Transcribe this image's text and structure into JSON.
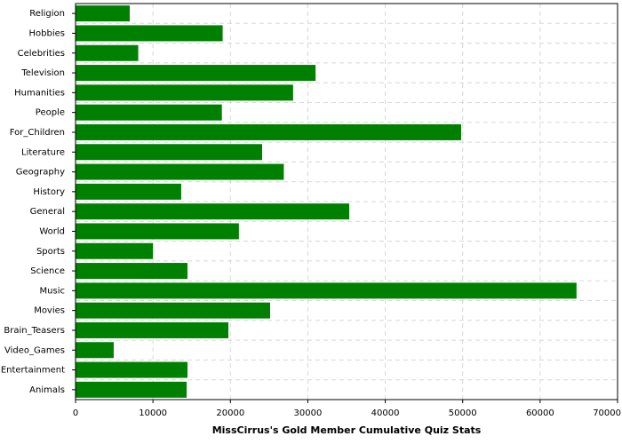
{
  "chart_data": {
    "type": "hbar",
    "title": "MissCirrus's Gold Member Cumulative Quiz Stats",
    "categories": [
      "Religion",
      "Hobbies",
      "Celebrities",
      "Television",
      "Humanities",
      "People",
      "For_Children",
      "Literature",
      "Geography",
      "History",
      "General",
      "World",
      "Sports",
      "Science",
      "Music",
      "Movies",
      "Brain_Teasers",
      "Video_Games",
      "Entertainment",
      "Animals"
    ],
    "values": [
      7000,
      19000,
      8100,
      31000,
      28100,
      18900,
      49800,
      24100,
      26900,
      13650,
      35350,
      21100,
      10000,
      14460,
      64700,
      25130,
      19740,
      4930,
      14460,
      14350
    ],
    "color": "#008000",
    "xlim": [
      0,
      70000
    ],
    "xticks": [
      0,
      10000,
      20000,
      30000,
      40000,
      50000,
      60000,
      70000
    ],
    "grid": true
  }
}
